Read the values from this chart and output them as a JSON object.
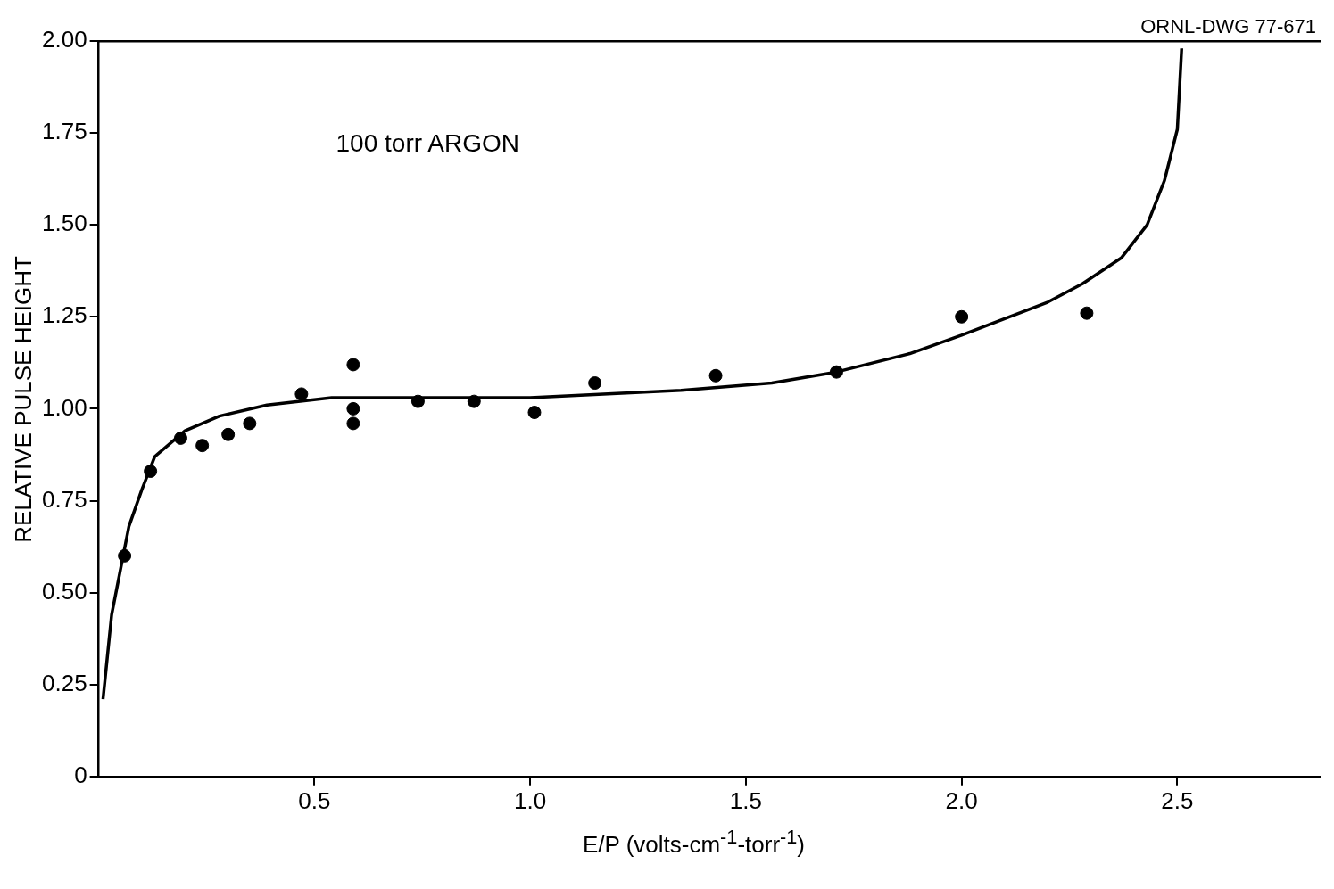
{
  "chart_data": {
    "type": "scatter",
    "xlabel": "E/P (volts-cm$^{-1}$-torr$^{-1}$)",
    "ylabel": "RELATIVE PULSE HEIGHT",
    "annotations": [
      "100 torr ARGON",
      "ORNL-DWG 77-671"
    ],
    "xlim": [
      0,
      2.83
    ],
    "ylim": [
      0,
      2
    ],
    "xticks": [
      {
        "value": 0.5,
        "label": "0.5"
      },
      {
        "value": 1,
        "label": "1.0"
      },
      {
        "value": 1.5,
        "label": "1.5"
      },
      {
        "value": 2,
        "label": "2.0"
      },
      {
        "value": 2.5,
        "label": "2.5"
      }
    ],
    "yticks": [
      {
        "value": 0,
        "label": "0"
      },
      0.25,
      {
        "value": 0.5,
        "label": "0.50"
      },
      0.75,
      {
        "value": 1,
        "label": "1.00"
      },
      1.25,
      {
        "value": 1.5,
        "label": "1.50"
      },
      1.75,
      {
        "value": 2,
        "label": "2.00"
      }
    ],
    "grid": false,
    "legend": false,
    "series": [
      {
        "color": "#000000",
        "marker": "circle",
        "x": [
          0.06,
          0.12,
          0.19,
          0.24,
          0.3,
          0.35,
          0.47,
          0.59,
          0.59,
          0.59,
          0.74,
          0.87,
          1.01,
          1.15,
          1.43,
          1.71,
          2.0,
          2.29
        ],
        "values": [
          0.6,
          0.83,
          0.92,
          0.9,
          0.93,
          0.96,
          1.04,
          1.12,
          1.0,
          0.96,
          1.02,
          1.02,
          0.99,
          1.07,
          1.09,
          1.1,
          1.25,
          1.26
        ]
      },
      {
        "type": "line",
        "color": "#000000",
        "marker": "none",
        "line_style": "solid",
        "x": [
          0.01,
          0.03,
          0.05,
          0.07,
          0.1,
          0.13,
          0.2,
          0.28,
          0.39,
          0.54,
          0.71,
          1.0,
          1.35,
          1.56,
          1.71,
          1.88,
          2.0,
          2.2,
          2.28,
          2.37,
          2.43,
          2.47,
          2.5,
          2.51
        ],
        "values": [
          0.21,
          0.44,
          0.56,
          0.68,
          0.78,
          0.87,
          0.94,
          0.98,
          1.01,
          1.03,
          1.03,
          1.03,
          1.05,
          1.07,
          1.1,
          1.15,
          1.2,
          1.29,
          1.34,
          1.41,
          1.5,
          1.62,
          1.76,
          1.98
        ]
      }
    ]
  }
}
